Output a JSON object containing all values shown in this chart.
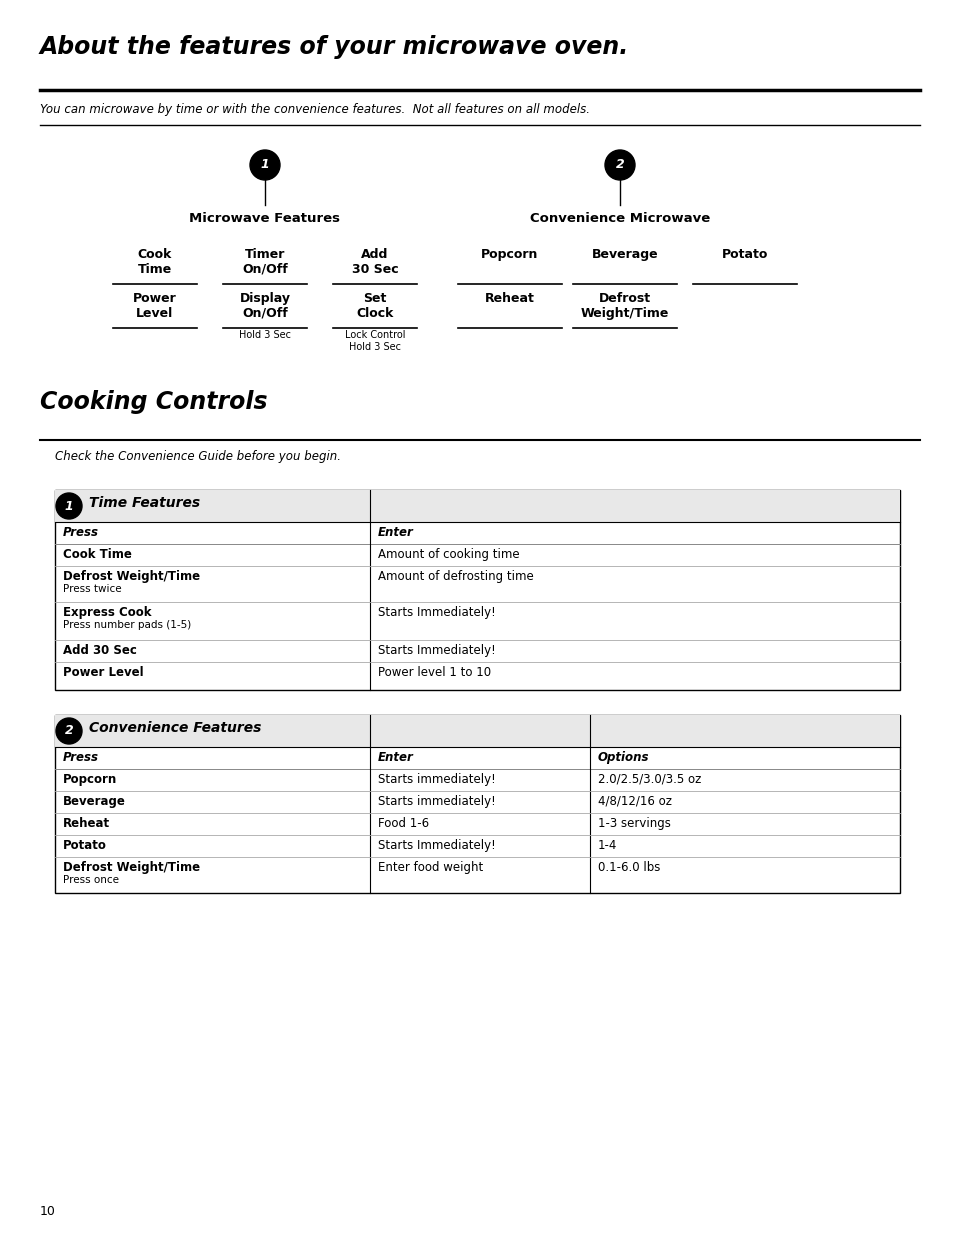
{
  "title": "About the features of your microwave oven.",
  "subtitle": "You can microwave by time or with the convenience features.  Not all features on all models.",
  "section2_title": "Cooking Controls",
  "section2_subtitle": "Check the Convenience Guide before you begin.",
  "microwave_features_label": "Microwave Features",
  "convenience_microwave_label": "Convenience Microwave",
  "mw_row1": [
    "Cook\nTime",
    "Timer\nOn/Off",
    "Add\n30 Sec"
  ],
  "mw_row2": [
    "Power\nLevel",
    "Display\nOn/Off",
    "Set\nClock"
  ],
  "mw_row2_sub": [
    "",
    "Hold 3 Sec",
    "Lock Control\nHold 3 Sec"
  ],
  "conv_row1": [
    "Popcorn",
    "Beverage",
    "Potato"
  ],
  "conv_row2": [
    "Reheat",
    "Defrost\nWeight/Time",
    ""
  ],
  "table1_title": "Time Features",
  "table1_header": [
    "Press",
    "Enter"
  ],
  "table1_rows": [
    [
      "Cook Time",
      "Amount of cooking time",
      false
    ],
    [
      "Defrost Weight/Time\nPress twice",
      "Amount of defrosting time",
      true
    ],
    [
      "Express Cook\nPress number pads (1-5)",
      "Starts Immediately!",
      true
    ],
    [
      "Add 30 Sec",
      "Starts Immediately!",
      false
    ],
    [
      "Power Level",
      "Power level 1 to 10",
      false
    ]
  ],
  "table2_title": "Convenience Features",
  "table2_header": [
    "Press",
    "Enter",
    "Options"
  ],
  "table2_rows": [
    [
      "Popcorn",
      "Starts immediately!",
      "2.0/2.5/3.0/3.5 oz",
      false
    ],
    [
      "Beverage",
      "Starts immediately!",
      "4/8/12/16 oz",
      false
    ],
    [
      "Reheat",
      "Food 1-6",
      "1-3 servings",
      false
    ],
    [
      "Potato",
      "Starts Immediately!",
      "1-4",
      false
    ],
    [
      "Defrost Weight/Time\nPress once",
      "Enter food weight",
      "0.1-6.0 lbs",
      true
    ]
  ],
  "page_number": "10",
  "bg_color": "#ffffff",
  "text_color": "#000000"
}
